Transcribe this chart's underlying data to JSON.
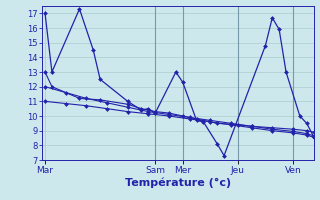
{
  "background_color": "#cce8ec",
  "grid_color": "#aacccc",
  "line_color": "#2222aa",
  "xlabel": "Température (°c)",
  "ylim": [
    7,
    17.5
  ],
  "yticks": [
    7,
    8,
    9,
    10,
    11,
    12,
    13,
    14,
    15,
    16,
    17
  ],
  "xtick_positions": [
    0,
    16,
    20,
    28,
    36
  ],
  "xtick_labels": [
    "Mar",
    "Sam",
    "Mer",
    "Jeu",
    "Ven"
  ],
  "vlines": [
    16,
    20,
    28,
    36
  ],
  "xlim": [
    -0.5,
    39
  ],
  "series1_x": [
    0,
    1,
    5,
    7,
    8,
    12,
    14,
    15,
    16,
    19,
    20,
    22,
    23,
    25,
    26,
    32,
    33,
    34,
    35,
    37,
    38,
    39
  ],
  "series1_y": [
    17.0,
    13.0,
    17.3,
    14.5,
    12.5,
    11.0,
    10.4,
    10.5,
    10.2,
    13.0,
    12.3,
    9.7,
    9.6,
    8.1,
    7.3,
    14.8,
    16.7,
    15.9,
    13.0,
    10.0,
    9.5,
    8.6
  ],
  "series2_x": [
    0,
    1,
    5,
    8,
    12,
    14,
    16,
    18,
    20,
    22,
    25,
    28,
    30,
    33,
    36,
    38,
    39
  ],
  "series2_y": [
    13.0,
    12.0,
    11.2,
    11.1,
    10.8,
    10.5,
    10.3,
    10.2,
    10.0,
    9.8,
    9.5,
    9.4,
    9.3,
    9.2,
    9.1,
    9.0,
    8.9
  ],
  "series3_x": [
    0,
    3,
    6,
    9,
    12,
    15,
    18,
    21,
    24,
    27,
    30,
    33,
    36,
    38,
    39
  ],
  "series3_y": [
    11.0,
    10.85,
    10.7,
    10.5,
    10.3,
    10.15,
    10.0,
    9.8,
    9.6,
    9.4,
    9.2,
    9.0,
    8.85,
    8.7,
    8.55
  ],
  "series4_x": [
    0,
    3,
    6,
    9,
    12,
    15,
    18,
    21,
    24,
    27,
    30,
    33,
    36,
    38,
    39
  ],
  "series4_y": [
    12.0,
    11.6,
    11.2,
    10.9,
    10.6,
    10.3,
    10.1,
    9.9,
    9.7,
    9.5,
    9.3,
    9.1,
    8.95,
    8.8,
    8.65
  ]
}
